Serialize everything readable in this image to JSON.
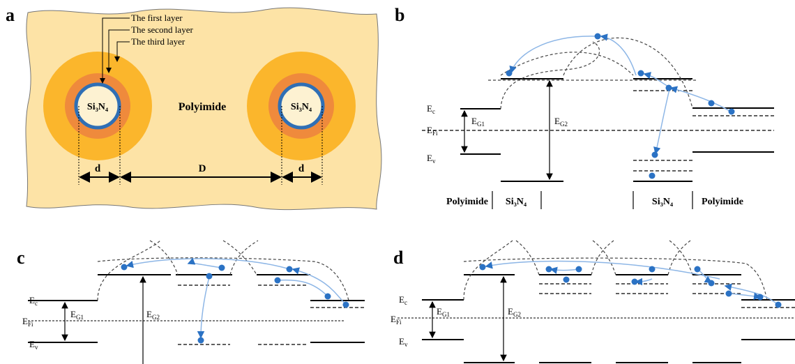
{
  "panels": {
    "a": {
      "label": "a",
      "layers": [
        "The first layer",
        "The second layer",
        "The third layer"
      ],
      "cores": [
        "Si₃N₄",
        "Si₃N₄"
      ],
      "matrix": "Polyimide",
      "spacings": [
        "d",
        "D",
        "d"
      ]
    },
    "b": {
      "label": "b",
      "levels": {
        "ec": {
          "main": "E",
          "sub": "c"
        },
        "efi": {
          "main": "E",
          "sub": "Fi"
        },
        "ev": {
          "main": "E",
          "sub": "v"
        },
        "eg1": {
          "main": "E",
          "sub": "G1"
        },
        "eg2": {
          "main": "E",
          "sub": "G2"
        }
      },
      "regions": [
        "Polyimide",
        "Si₃N₄",
        "Si₃N₄",
        "Polyimide"
      ]
    },
    "c": {
      "label": "c",
      "levels": {
        "ec": {
          "main": "E",
          "sub": "c"
        },
        "efi": {
          "main": "E",
          "sub": "Fi"
        },
        "ev": {
          "main": "E",
          "sub": "v"
        },
        "eg1": {
          "main": "E",
          "sub": "G1"
        },
        "eg2": {
          "main": "E",
          "sub": "G2"
        }
      }
    },
    "d": {
      "label": "d",
      "levels": {
        "ec": {
          "main": "E",
          "sub": "c"
        },
        "efi": {
          "main": "E",
          "sub": "Fi"
        },
        "ev": {
          "main": "E",
          "sub": "v"
        },
        "eg1": {
          "main": "E",
          "sub": "G1"
        },
        "eg2": {
          "main": "E",
          "sub": "G2"
        }
      }
    }
  }
}
